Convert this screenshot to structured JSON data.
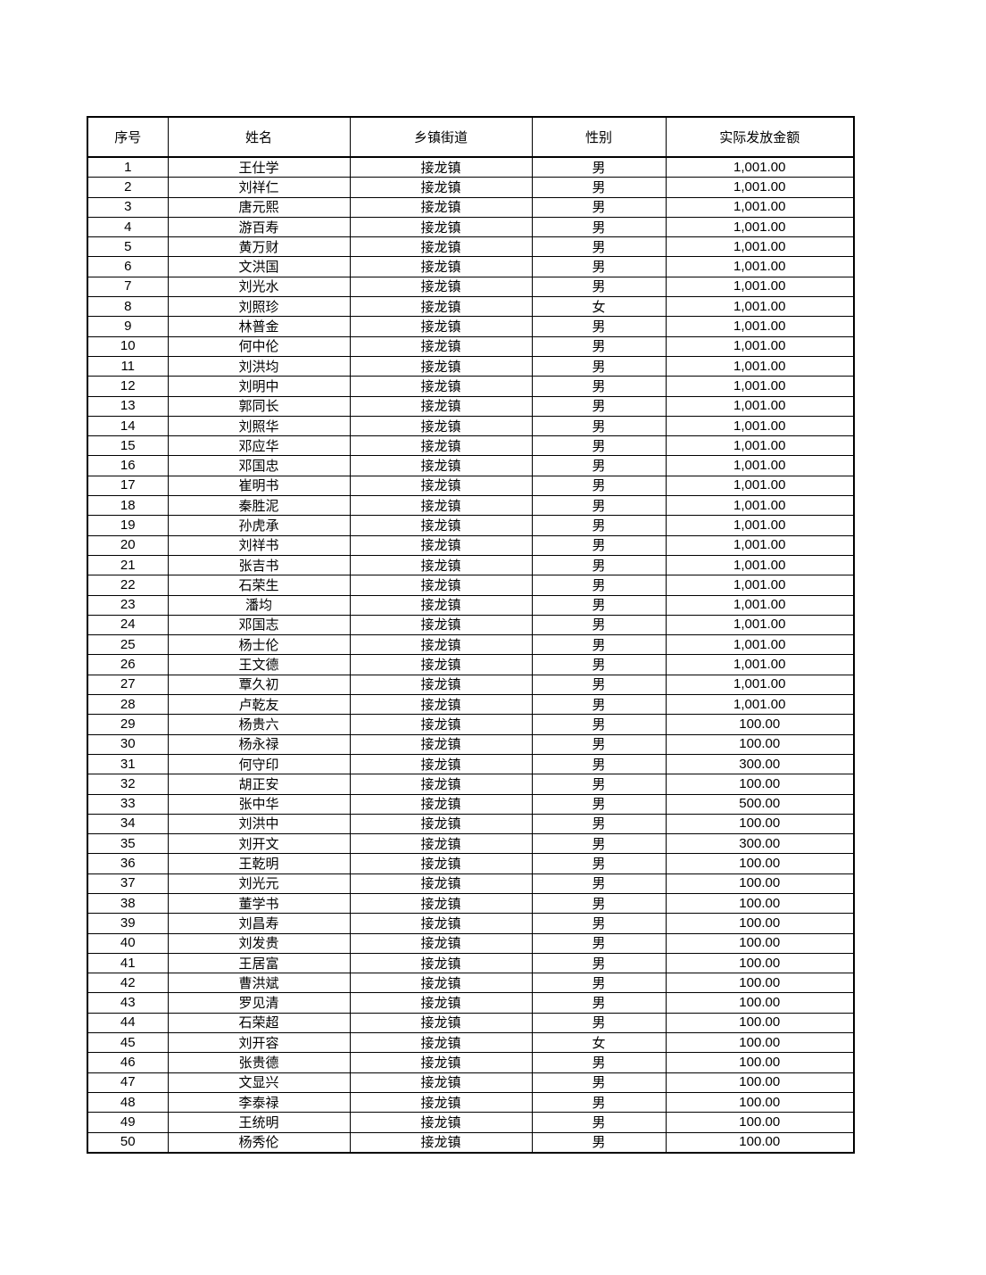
{
  "table": {
    "headers": [
      "序号",
      "姓名",
      "乡镇街道",
      "性别",
      "实际发放金额"
    ],
    "rows": [
      [
        "1",
        "王仕学",
        "接龙镇",
        "男",
        "1,001.00"
      ],
      [
        "2",
        "刘祥仁",
        "接龙镇",
        "男",
        "1,001.00"
      ],
      [
        "3",
        "唐元熙",
        "接龙镇",
        "男",
        "1,001.00"
      ],
      [
        "4",
        "游百寿",
        "接龙镇",
        "男",
        "1,001.00"
      ],
      [
        "5",
        "黄万财",
        "接龙镇",
        "男",
        "1,001.00"
      ],
      [
        "6",
        "文洪国",
        "接龙镇",
        "男",
        "1,001.00"
      ],
      [
        "7",
        "刘光水",
        "接龙镇",
        "男",
        "1,001.00"
      ],
      [
        "8",
        "刘照珍",
        "接龙镇",
        "女",
        "1,001.00"
      ],
      [
        "9",
        "林普金",
        "接龙镇",
        "男",
        "1,001.00"
      ],
      [
        "10",
        "何中伦",
        "接龙镇",
        "男",
        "1,001.00"
      ],
      [
        "11",
        "刘洪均",
        "接龙镇",
        "男",
        "1,001.00"
      ],
      [
        "12",
        "刘明中",
        "接龙镇",
        "男",
        "1,001.00"
      ],
      [
        "13",
        "郭同长",
        "接龙镇",
        "男",
        "1,001.00"
      ],
      [
        "14",
        "刘照华",
        "接龙镇",
        "男",
        "1,001.00"
      ],
      [
        "15",
        "邓应华",
        "接龙镇",
        "男",
        "1,001.00"
      ],
      [
        "16",
        "邓国忠",
        "接龙镇",
        "男",
        "1,001.00"
      ],
      [
        "17",
        "崔明书",
        "接龙镇",
        "男",
        "1,001.00"
      ],
      [
        "18",
        "秦胜泥",
        "接龙镇",
        "男",
        "1,001.00"
      ],
      [
        "19",
        "孙虎承",
        "接龙镇",
        "男",
        "1,001.00"
      ],
      [
        "20",
        "刘祥书",
        "接龙镇",
        "男",
        "1,001.00"
      ],
      [
        "21",
        "张吉书",
        "接龙镇",
        "男",
        "1,001.00"
      ],
      [
        "22",
        "石荣生",
        "接龙镇",
        "男",
        "1,001.00"
      ],
      [
        "23",
        "潘均",
        "接龙镇",
        "男",
        "1,001.00"
      ],
      [
        "24",
        "邓国志",
        "接龙镇",
        "男",
        "1,001.00"
      ],
      [
        "25",
        "杨士伦",
        "接龙镇",
        "男",
        "1,001.00"
      ],
      [
        "26",
        "王文德",
        "接龙镇",
        "男",
        "1,001.00"
      ],
      [
        "27",
        "覃久初",
        "接龙镇",
        "男",
        "1,001.00"
      ],
      [
        "28",
        "卢乾友",
        "接龙镇",
        "男",
        "1,001.00"
      ],
      [
        "29",
        "杨贵六",
        "接龙镇",
        "男",
        "100.00"
      ],
      [
        "30",
        "杨永禄",
        "接龙镇",
        "男",
        "100.00"
      ],
      [
        "31",
        "何守印",
        "接龙镇",
        "男",
        "300.00"
      ],
      [
        "32",
        "胡正安",
        "接龙镇",
        "男",
        "100.00"
      ],
      [
        "33",
        "张中华",
        "接龙镇",
        "男",
        "500.00"
      ],
      [
        "34",
        "刘洪中",
        "接龙镇",
        "男",
        "100.00"
      ],
      [
        "35",
        "刘开文",
        "接龙镇",
        "男",
        "300.00"
      ],
      [
        "36",
        "王乾明",
        "接龙镇",
        "男",
        "100.00"
      ],
      [
        "37",
        "刘光元",
        "接龙镇",
        "男",
        "100.00"
      ],
      [
        "38",
        "董学书",
        "接龙镇",
        "男",
        "100.00"
      ],
      [
        "39",
        "刘昌寿",
        "接龙镇",
        "男",
        "100.00"
      ],
      [
        "40",
        "刘发贵",
        "接龙镇",
        "男",
        "100.00"
      ],
      [
        "41",
        "王居富",
        "接龙镇",
        "男",
        "100.00"
      ],
      [
        "42",
        "曹洪斌",
        "接龙镇",
        "男",
        "100.00"
      ],
      [
        "43",
        "罗见清",
        "接龙镇",
        "男",
        "100.00"
      ],
      [
        "44",
        "石荣超",
        "接龙镇",
        "男",
        "100.00"
      ],
      [
        "45",
        "刘开容",
        "接龙镇",
        "女",
        "100.00"
      ],
      [
        "46",
        "张贵德",
        "接龙镇",
        "男",
        "100.00"
      ],
      [
        "47",
        "文显兴",
        "接龙镇",
        "男",
        "100.00"
      ],
      [
        "48",
        "李泰禄",
        "接龙镇",
        "男",
        "100.00"
      ],
      [
        "49",
        "王统明",
        "接龙镇",
        "男",
        "100.00"
      ],
      [
        "50",
        "杨秀伦",
        "接龙镇",
        "男",
        "100.00"
      ]
    ]
  }
}
